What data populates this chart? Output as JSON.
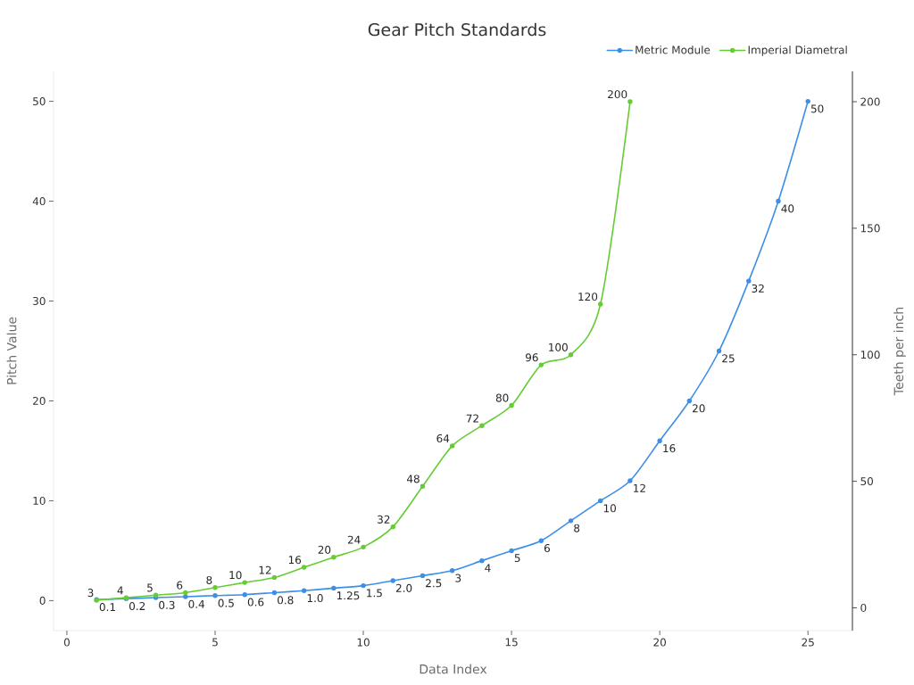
{
  "chart_data": {
    "type": "line",
    "title": "Gear Pitch Standards",
    "xlabel": "Data Index",
    "ylabel": "Pitch Value",
    "y2label": "Teeth per inch",
    "xlim": [
      -0.45,
      26.5
    ],
    "xticks": [
      0,
      5,
      10,
      15,
      20,
      25
    ],
    "ylim": [
      -3,
      53
    ],
    "yticks": [
      0,
      10,
      20,
      30,
      40,
      50
    ],
    "y2lim": [
      -9,
      212
    ],
    "y2ticks": [
      0,
      50,
      100,
      150,
      200
    ],
    "legend": "top right",
    "marker": "circle",
    "line_style": "solid",
    "series": [
      {
        "name": "Metric Module",
        "color": "#3d8fe6",
        "x": [
          1,
          2,
          3,
          4,
          5,
          6,
          7,
          8,
          9,
          10,
          11,
          12,
          13,
          14,
          15,
          16,
          17,
          18,
          19,
          20,
          21,
          22,
          23,
          24,
          25
        ],
        "values": [
          0.1,
          0.2,
          0.3,
          0.4,
          0.5,
          0.6,
          0.8,
          1.0,
          1.25,
          1.5,
          2.0,
          2.5,
          3,
          4,
          5,
          6,
          8,
          10,
          12,
          16,
          20,
          25,
          32,
          40,
          50
        ],
        "value_labels": [
          "0.1",
          "0.2",
          "0.3",
          "0.4",
          "0.5",
          "0.6",
          "0.8",
          "1.0",
          "1.25",
          "1.5",
          "2.0",
          "2.5",
          "3",
          "4",
          "5",
          "6",
          "8",
          "10",
          "12",
          "16",
          "20",
          "25",
          "32",
          "40",
          "50"
        ]
      },
      {
        "name": "Imperial Diametral",
        "color": "#66cc33",
        "axis": "y2",
        "x": [
          1,
          2,
          3,
          4,
          5,
          6,
          7,
          8,
          9,
          10,
          11,
          12,
          13,
          14,
          15,
          16,
          17,
          18,
          19
        ],
        "values": [
          3,
          4,
          5,
          6,
          8,
          10,
          12,
          16,
          20,
          24,
          32,
          48,
          64,
          72,
          80,
          96,
          100,
          120,
          200
        ],
        "value_labels": [
          "3",
          "4",
          "5",
          "6",
          "8",
          "10",
          "12",
          "16",
          "20",
          "24",
          "32",
          "48",
          "64",
          "72",
          "80",
          "96",
          "100",
          "120",
          "200"
        ]
      }
    ]
  }
}
